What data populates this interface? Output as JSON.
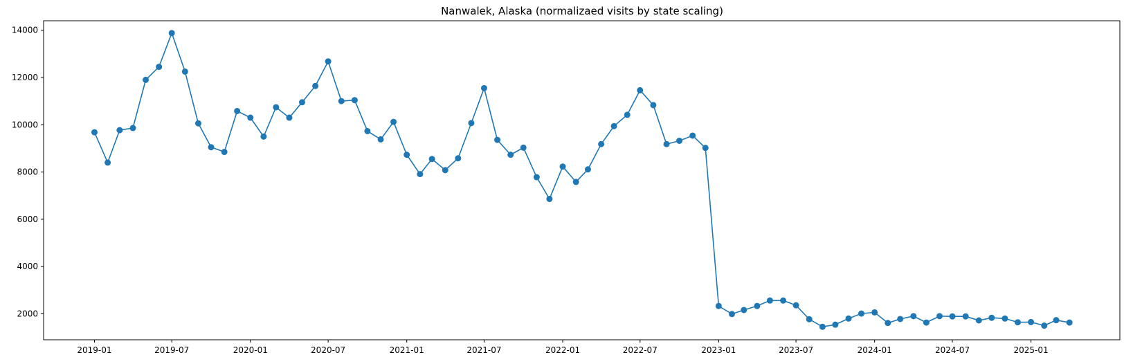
{
  "chart_data": {
    "type": "line",
    "title": "Nanwalek, Alaska (normalizaed visits by state scaling)",
    "xlabel": "",
    "ylabel": "",
    "ylim": [
      900,
      14400
    ],
    "xlim": [
      "2018-09-04",
      "2025-07-28"
    ],
    "grid": false,
    "legend": "none",
    "marker": "circle",
    "color": "#1f77b4",
    "x_ticks": [
      "2019-01",
      "2019-07",
      "2020-01",
      "2020-07",
      "2021-01",
      "2021-07",
      "2022-01",
      "2022-07",
      "2023-01",
      "2023-07",
      "2024-01",
      "2024-07",
      "2025-01"
    ],
    "y_ticks": [
      2000,
      4000,
      6000,
      8000,
      10000,
      12000,
      14000
    ],
    "x": [
      "2019-01",
      "2019-02",
      "2019-03",
      "2019-04",
      "2019-05",
      "2019-06",
      "2019-07",
      "2019-08",
      "2019-09",
      "2019-10",
      "2019-11",
      "2019-12",
      "2020-01",
      "2020-02",
      "2020-03",
      "2020-04",
      "2020-05",
      "2020-06",
      "2020-07",
      "2020-08",
      "2020-09",
      "2020-10",
      "2020-11",
      "2020-12",
      "2021-01",
      "2021-02",
      "2021-03",
      "2021-04",
      "2021-05",
      "2021-06",
      "2021-07",
      "2021-08",
      "2021-09",
      "2021-10",
      "2021-11",
      "2021-12",
      "2022-01",
      "2022-02",
      "2022-03",
      "2022-04",
      "2022-05",
      "2022-06",
      "2022-07",
      "2022-08",
      "2022-09",
      "2022-10",
      "2022-11",
      "2022-12",
      "2023-01",
      "2023-02",
      "2023-03",
      "2023-04",
      "2023-05",
      "2023-06",
      "2023-07",
      "2023-08",
      "2023-09",
      "2023-10",
      "2023-11",
      "2023-12",
      "2024-01",
      "2024-02",
      "2024-03",
      "2024-04",
      "2024-05",
      "2024-06",
      "2024-07",
      "2024-08",
      "2024-09",
      "2024-10",
      "2024-11",
      "2024-12",
      "2025-01",
      "2025-02",
      "2025-03",
      "2025-04"
    ],
    "series": [
      {
        "values": [
          9680,
          8400,
          9770,
          9860,
          11900,
          12450,
          13880,
          12250,
          10060,
          9050,
          8850,
          10580,
          10300,
          9500,
          10740,
          10300,
          10950,
          11640,
          12680,
          11000,
          11040,
          9730,
          9380,
          10120,
          8730,
          7910,
          8550,
          8080,
          8580,
          10070,
          11550,
          9360,
          8730,
          9030,
          7780,
          6860,
          8230,
          7580,
          8110,
          9180,
          9940,
          10420,
          11460,
          10830,
          9180,
          9320,
          9540,
          9020,
          2330,
          1990,
          2160,
          2330,
          2560,
          2560,
          2360,
          1770,
          1450,
          1540,
          1800,
          2010,
          2060,
          1610,
          1780,
          1900,
          1630,
          1900,
          1890,
          1890,
          1720,
          1830,
          1800,
          1640,
          1650,
          1500,
          1730,
          1630
        ]
      }
    ]
  }
}
